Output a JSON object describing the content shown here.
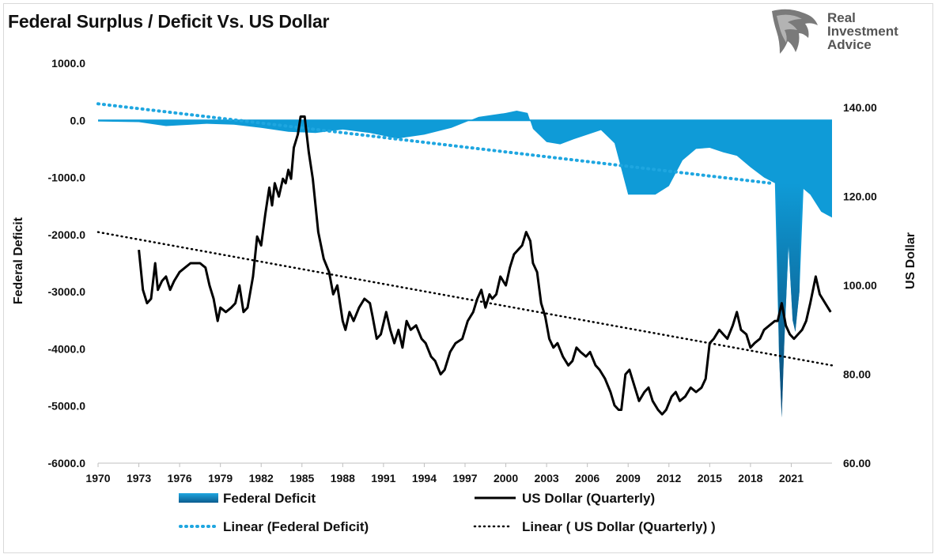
{
  "chart_data": {
    "type": "area+line",
    "title": "Federal Surplus / Deficit Vs. US Dollar",
    "left_axis": {
      "label": "Federal Deficit",
      "min": -6000,
      "max": 1000,
      "ticks": [
        "1000.0",
        "0.0",
        "-1000.0",
        "-2000.0",
        "-3000.0",
        "-4000.0",
        "-5000.0",
        "-6000.0"
      ]
    },
    "right_axis": {
      "label": "US Dollar",
      "min": 60,
      "max": 150,
      "ticks": [
        "140.00",
        "120.00",
        "100.00",
        "80.00",
        "60.00"
      ]
    },
    "x_axis": {
      "min": 1970,
      "max": 2024,
      "ticks": [
        "1970",
        "1973",
        "1976",
        "1979",
        "1982",
        "1985",
        "1988",
        "1991",
        "1994",
        "1997",
        "2000",
        "2003",
        "2006",
        "2009",
        "2012",
        "2015",
        "2018",
        "2021"
      ]
    },
    "series": [
      {
        "name": "Federal Deficit",
        "kind": "area",
        "axis": "left",
        "color": "#0f9bd7",
        "points": [
          [
            1970,
            -20
          ],
          [
            1973,
            -30
          ],
          [
            1975,
            -100
          ],
          [
            1978,
            -60
          ],
          [
            1980,
            -75
          ],
          [
            1982,
            -130
          ],
          [
            1984,
            -200
          ],
          [
            1986,
            -220
          ],
          [
            1988,
            -160
          ],
          [
            1990,
            -220
          ],
          [
            1992,
            -320
          ],
          [
            1994,
            -250
          ],
          [
            1996,
            -130
          ],
          [
            1998,
            60
          ],
          [
            2000,
            130
          ],
          [
            2000.8,
            170
          ],
          [
            2001.6,
            130
          ],
          [
            2002,
            -150
          ],
          [
            2003,
            -380
          ],
          [
            2004,
            -420
          ],
          [
            2005,
            -330
          ],
          [
            2006,
            -250
          ],
          [
            2007,
            -170
          ],
          [
            2008,
            -400
          ],
          [
            2009,
            -1300
          ],
          [
            2010,
            -1300
          ],
          [
            2011,
            -1300
          ],
          [
            2012,
            -1150
          ],
          [
            2013,
            -700
          ],
          [
            2014,
            -500
          ],
          [
            2015,
            -480
          ],
          [
            2016,
            -560
          ],
          [
            2017,
            -620
          ],
          [
            2018,
            -820
          ],
          [
            2019,
            -1000
          ],
          [
            2019.8,
            -1100
          ],
          [
            2020.1,
            -4100
          ],
          [
            2020.3,
            -5200
          ],
          [
            2020.5,
            -3800
          ],
          [
            2020.8,
            -2200
          ],
          [
            2021.1,
            -3500
          ],
          [
            2021.3,
            -3700
          ],
          [
            2021.6,
            -3000
          ],
          [
            2021.9,
            -1200
          ],
          [
            2022.4,
            -1300
          ],
          [
            2023.2,
            -1600
          ],
          [
            2023.6,
            -1650
          ],
          [
            2024,
            -1700
          ]
        ]
      },
      {
        "name": "US Dollar (Quarterly)",
        "kind": "line",
        "axis": "right",
        "color": "#000000",
        "points": [
          [
            1973.0,
            108
          ],
          [
            1973.3,
            99
          ],
          [
            1973.6,
            96
          ],
          [
            1973.9,
            97
          ],
          [
            1974.2,
            105
          ],
          [
            1974.4,
            99
          ],
          [
            1974.7,
            101
          ],
          [
            1975.0,
            102
          ],
          [
            1975.3,
            99
          ],
          [
            1975.6,
            101
          ],
          [
            1976.0,
            103
          ],
          [
            1976.4,
            104
          ],
          [
            1976.8,
            105
          ],
          [
            1977.1,
            105
          ],
          [
            1977.5,
            105
          ],
          [
            1977.9,
            104
          ],
          [
            1978.2,
            100
          ],
          [
            1978.5,
            97
          ],
          [
            1978.8,
            92
          ],
          [
            1979.0,
            95
          ],
          [
            1979.4,
            94
          ],
          [
            1979.8,
            95
          ],
          [
            1980.1,
            96
          ],
          [
            1980.4,
            100
          ],
          [
            1980.7,
            94
          ],
          [
            1981.0,
            95
          ],
          [
            1981.4,
            102
          ],
          [
            1981.7,
            111
          ],
          [
            1982.0,
            109
          ],
          [
            1982.3,
            116
          ],
          [
            1982.6,
            122
          ],
          [
            1982.8,
            118
          ],
          [
            1983.0,
            123
          ],
          [
            1983.3,
            120
          ],
          [
            1983.6,
            124
          ],
          [
            1983.8,
            123
          ],
          [
            1984.0,
            126
          ],
          [
            1984.2,
            124
          ],
          [
            1984.4,
            131
          ],
          [
            1984.7,
            134
          ],
          [
            1984.9,
            138
          ],
          [
            1985.2,
            138
          ],
          [
            1985.5,
            130
          ],
          [
            1985.8,
            124
          ],
          [
            1986.2,
            112
          ],
          [
            1986.6,
            106
          ],
          [
            1987.0,
            103
          ],
          [
            1987.3,
            98
          ],
          [
            1987.6,
            100
          ],
          [
            1988.0,
            92
          ],
          [
            1988.2,
            90
          ],
          [
            1988.5,
            94
          ],
          [
            1988.8,
            92
          ],
          [
            1989.2,
            95
          ],
          [
            1989.6,
            97
          ],
          [
            1990.0,
            96
          ],
          [
            1990.2,
            93
          ],
          [
            1990.5,
            88
          ],
          [
            1990.8,
            89
          ],
          [
            1991.2,
            94
          ],
          [
            1991.5,
            90
          ],
          [
            1991.8,
            87
          ],
          [
            1992.1,
            90
          ],
          [
            1992.4,
            86
          ],
          [
            1992.7,
            92
          ],
          [
            1993.0,
            90
          ],
          [
            1993.4,
            91
          ],
          [
            1993.8,
            88
          ],
          [
            1994.1,
            87
          ],
          [
            1994.5,
            84
          ],
          [
            1994.8,
            83
          ],
          [
            1995.2,
            80
          ],
          [
            1995.5,
            81
          ],
          [
            1995.9,
            85
          ],
          [
            1996.3,
            87
          ],
          [
            1996.8,
            88
          ],
          [
            1997.2,
            92
          ],
          [
            1997.6,
            94
          ],
          [
            1997.9,
            97
          ],
          [
            1998.2,
            99
          ],
          [
            1998.5,
            95
          ],
          [
            1998.8,
            98
          ],
          [
            1999.0,
            97
          ],
          [
            1999.3,
            98
          ],
          [
            1999.6,
            102
          ],
          [
            2000.0,
            100
          ],
          [
            2000.3,
            104
          ],
          [
            2000.6,
            107
          ],
          [
            2000.9,
            108
          ],
          [
            2001.2,
            109
          ],
          [
            2001.5,
            112
          ],
          [
            2001.8,
            110
          ],
          [
            2002.0,
            105
          ],
          [
            2002.3,
            103
          ],
          [
            2002.6,
            96
          ],
          [
            2002.9,
            93
          ],
          [
            2003.2,
            88
          ],
          [
            2003.5,
            86
          ],
          [
            2003.8,
            87
          ],
          [
            2004.2,
            84
          ],
          [
            2004.6,
            82
          ],
          [
            2004.9,
            83
          ],
          [
            2005.2,
            86
          ],
          [
            2005.5,
            85
          ],
          [
            2005.9,
            84
          ],
          [
            2006.2,
            85
          ],
          [
            2006.6,
            82
          ],
          [
            2006.9,
            81
          ],
          [
            2007.3,
            79
          ],
          [
            2007.7,
            76
          ],
          [
            2008.0,
            73
          ],
          [
            2008.3,
            72
          ],
          [
            2008.5,
            72
          ],
          [
            2008.8,
            80
          ],
          [
            2009.1,
            81
          ],
          [
            2009.5,
            77
          ],
          [
            2009.8,
            74
          ],
          [
            2010.2,
            76
          ],
          [
            2010.5,
            77
          ],
          [
            2010.8,
            74
          ],
          [
            2011.2,
            72
          ],
          [
            2011.5,
            71
          ],
          [
            2011.8,
            72
          ],
          [
            2012.2,
            75
          ],
          [
            2012.5,
            76
          ],
          [
            2012.8,
            74
          ],
          [
            2013.2,
            75
          ],
          [
            2013.6,
            77
          ],
          [
            2014.0,
            76
          ],
          [
            2014.4,
            77
          ],
          [
            2014.7,
            79
          ],
          [
            2015.0,
            87
          ],
          [
            2015.3,
            88
          ],
          [
            2015.7,
            90
          ],
          [
            2016.0,
            89
          ],
          [
            2016.3,
            88
          ],
          [
            2016.7,
            91
          ],
          [
            2017.0,
            94
          ],
          [
            2017.3,
            90
          ],
          [
            2017.7,
            89
          ],
          [
            2018.0,
            86
          ],
          [
            2018.3,
            87
          ],
          [
            2018.7,
            88
          ],
          [
            2019.0,
            90
          ],
          [
            2019.4,
            91
          ],
          [
            2019.8,
            92
          ],
          [
            2020.0,
            92
          ],
          [
            2020.3,
            96
          ],
          [
            2020.6,
            91
          ],
          [
            2020.9,
            89
          ],
          [
            2021.2,
            88
          ],
          [
            2021.5,
            89
          ],
          [
            2021.8,
            90
          ],
          [
            2022.1,
            92
          ],
          [
            2022.4,
            96
          ],
          [
            2022.8,
            102
          ],
          [
            2023.1,
            98
          ],
          [
            2023.5,
            96
          ],
          [
            2023.9,
            94
          ]
        ]
      },
      {
        "name": "Linear (Federal Deficit)",
        "kind": "trend",
        "axis": "left",
        "color": "#1ea6e0",
        "points": [
          [
            1970,
            290
          ],
          [
            2019.5,
            -1100
          ]
        ]
      },
      {
        "name": "Linear ( US Dollar (Quarterly) )",
        "kind": "trend",
        "axis": "right",
        "color": "#000000",
        "points": [
          [
            1970,
            112
          ],
          [
            2024,
            82
          ]
        ]
      }
    ],
    "legend": [
      {
        "label": "Federal Deficit",
        "style": "area"
      },
      {
        "label": "US Dollar (Quarterly)",
        "style": "line"
      },
      {
        "label": "Linear (Federal Deficit)",
        "style": "dotted-blue"
      },
      {
        "label": "Linear ( US Dollar (Quarterly) )",
        "style": "dotted-black"
      }
    ],
    "legend_position": "bottom"
  },
  "logo": {
    "line1": "Real",
    "line2": "Investment",
    "line3": "Advice"
  }
}
